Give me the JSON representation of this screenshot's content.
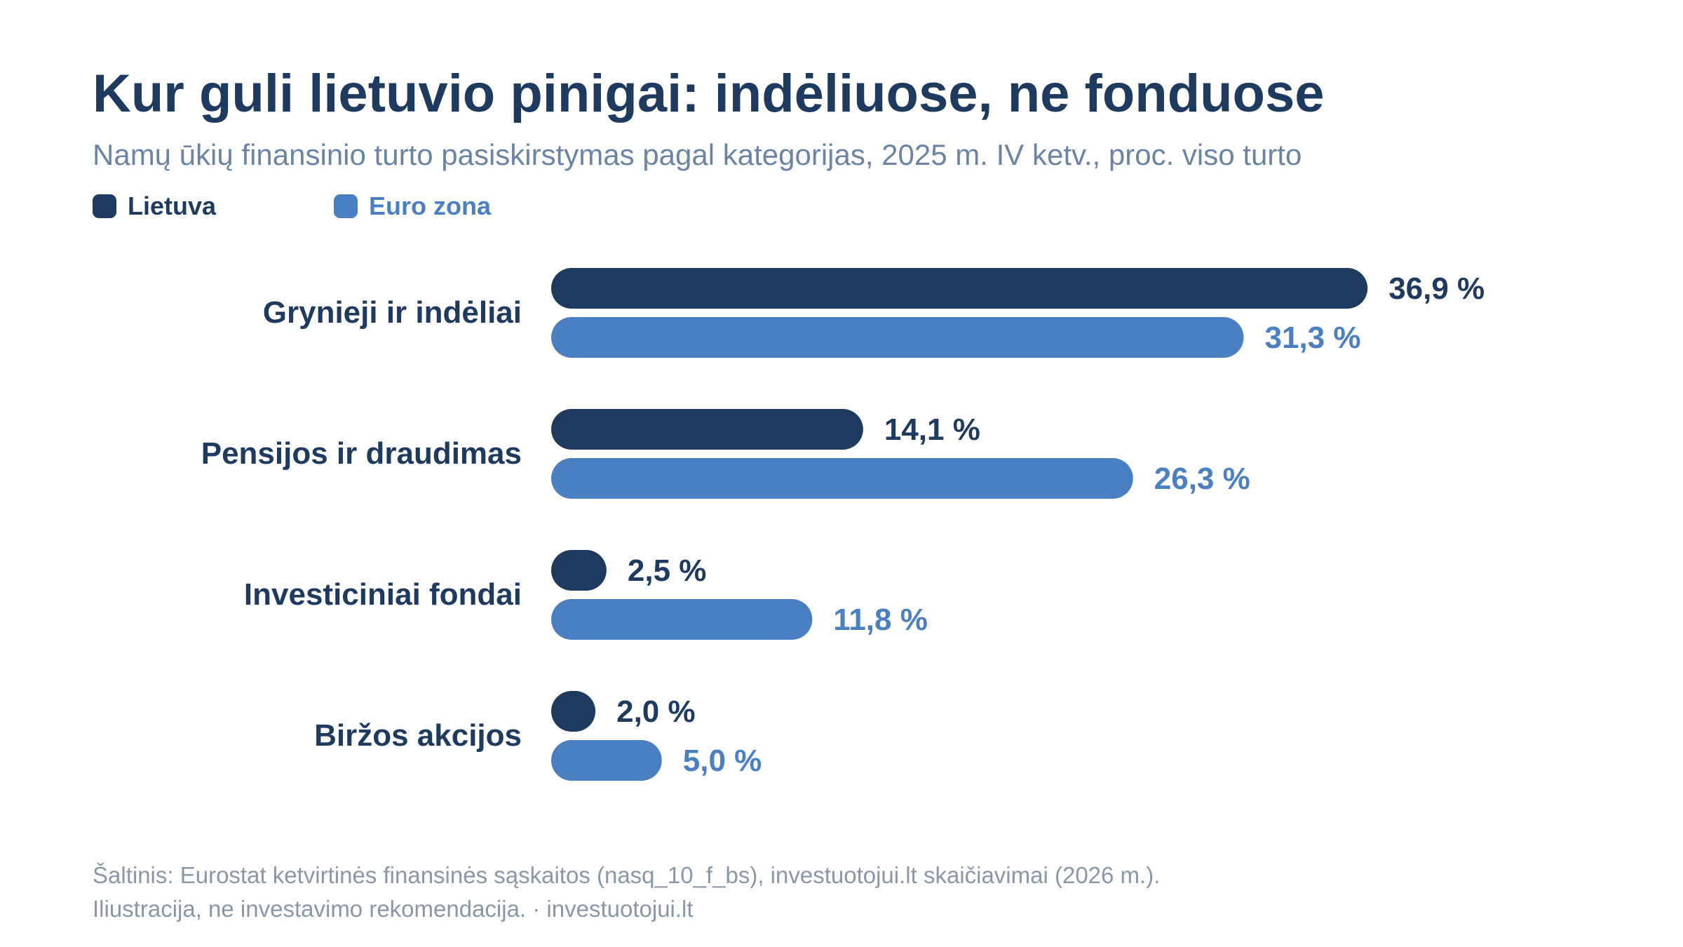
{
  "header": {
    "title": "Kur guli lietuvio pinigai: indėliuose, ne fonduose",
    "subtitle": "Namų ūkių finansinio turto pasiskirstymas pagal kategorijas, 2025 m. IV ketv., proc. viso turto"
  },
  "colors": {
    "lietuva": "#1f3a5f",
    "euro_zona": "#4a7fc1",
    "category_label": "#1f3a5f"
  },
  "chart_data": {
    "type": "bar",
    "orientation": "horizontal",
    "categories": [
      "Grynieji ir indėliai",
      "Pensijos ir draudimas",
      "Investiciniai fondai",
      "Biržos akcijos"
    ],
    "series": [
      {
        "name": "Lietuva",
        "values": [
          36.9,
          14.1,
          2.5,
          2.0
        ],
        "labels": [
          "36,9 %",
          "14,1 %",
          "2,5 %",
          "2,0 %"
        ]
      },
      {
        "name": "Euro zona",
        "values": [
          31.3,
          26.3,
          11.8,
          5.0
        ],
        "labels": [
          "31,3 %",
          "26,3 %",
          "11,8 %",
          "5,0 %"
        ]
      }
    ],
    "legend": "top-left",
    "grid": false
  },
  "footer": {
    "source": "Šaltinis: Eurostat ketvirtinės finansinės sąskaitos (nasq_10_f_bs), investuotojui.lt skaičiavimai (2026 m.).",
    "note": "Iliustracija, ne investavimo rekomendacija. · investuotojui.lt"
  }
}
